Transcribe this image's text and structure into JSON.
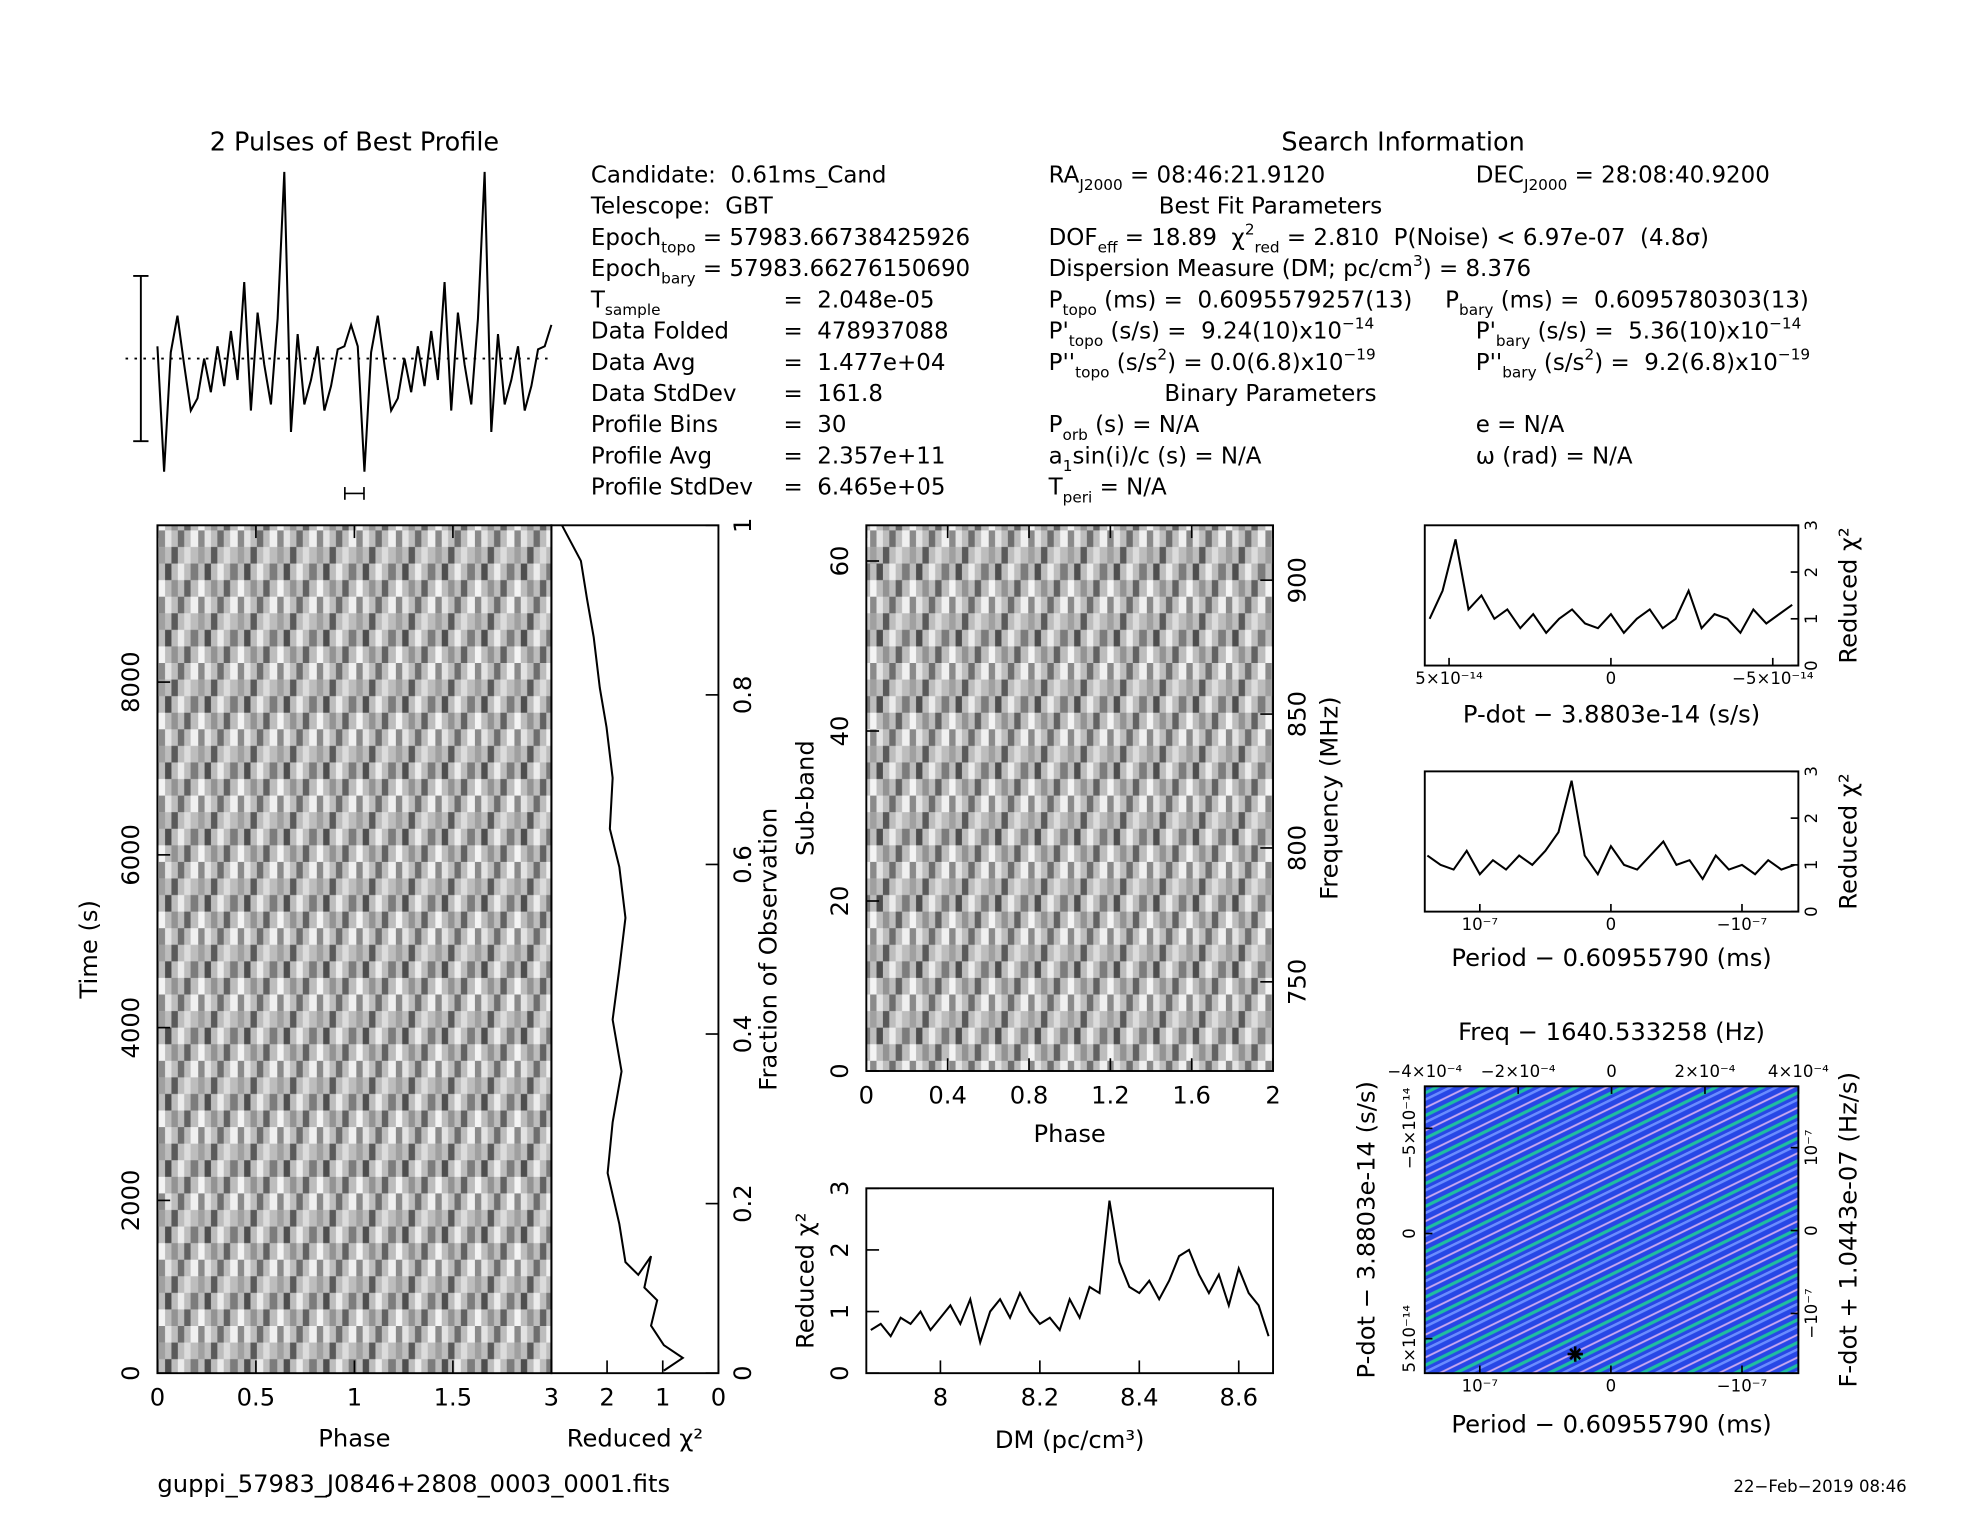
{
  "header": {
    "search_title": "Search Information",
    "left": [
      {
        "runs": [
          {
            "t": "Candidate:  0.61ms_Cand"
          }
        ]
      },
      {
        "runs": [
          {
            "t": "Telescope:  GBT"
          }
        ]
      },
      {
        "runs": [
          {
            "t": "Epoch"
          },
          {
            "sub": "topo"
          },
          {
            "t": " = 57983.66738425926"
          }
        ]
      },
      {
        "runs": [
          {
            "t": "Epoch"
          },
          {
            "sub": "bary"
          },
          {
            "t": " = 57983.66276150690"
          }
        ]
      },
      {
        "runs": [
          {
            "t": "T"
          },
          {
            "sub": "sample"
          }
        ],
        "value": "=  2.048e-05"
      },
      {
        "runs": [
          {
            "t": "Data Folded"
          }
        ],
        "value": "=  478937088"
      },
      {
        "runs": [
          {
            "t": "Data Avg"
          }
        ],
        "value": "=  1.477e+04"
      },
      {
        "runs": [
          {
            "t": "Data StdDev"
          }
        ],
        "value": "=  161.8"
      },
      {
        "runs": [
          {
            "t": "Profile Bins"
          }
        ],
        "value": "=  30"
      },
      {
        "runs": [
          {
            "t": "Profile Avg"
          }
        ],
        "value": "=  2.357e+11"
      },
      {
        "runs": [
          {
            "t": "Profile StdDev"
          }
        ],
        "value": "=  6.465e+05"
      }
    ],
    "mid": [
      {
        "runs": [
          {
            "t": "RA"
          },
          {
            "sub": "J2000"
          },
          {
            "t": " = 08:46:21.9120"
          }
        ]
      },
      {
        "heading": "Best Fit Parameters"
      },
      {
        "runs": [
          {
            "t": "DOF"
          },
          {
            "sub": "eff"
          },
          {
            "t": " = 18.89  χ"
          },
          {
            "sup": "2"
          },
          {
            "sub": "red"
          },
          {
            "t": " = 2.810  P(Noise) < 6.97e-07  (4.8σ)"
          }
        ]
      },
      {
        "runs": [
          {
            "t": "Dispersion Measure (DM; pc/cm"
          },
          {
            "sup": "3"
          },
          {
            "t": ") = 8.376"
          }
        ]
      },
      {
        "runs": [
          {
            "t": "P"
          },
          {
            "sub": "topo"
          },
          {
            "t": " (ms) =  0.6095579257(13)"
          }
        ]
      },
      {
        "runs": [
          {
            "t": "P'"
          },
          {
            "sub": "topo"
          },
          {
            "t": " (s/s) =  9.24(10)x10"
          },
          {
            "sup": "−14"
          }
        ]
      },
      {
        "runs": [
          {
            "t": "P''"
          },
          {
            "sub": "topo"
          },
          {
            "t": " (s/s"
          },
          {
            "sup": "2"
          },
          {
            "t": ") = 0.0(6.8)x10"
          },
          {
            "sup": "−19"
          }
        ]
      },
      {
        "heading": "Binary Parameters"
      },
      {
        "runs": [
          {
            "t": "P"
          },
          {
            "sub": "orb"
          },
          {
            "t": " (s) = N/A"
          }
        ]
      },
      {
        "runs": [
          {
            "t": "a"
          },
          {
            "sub": "1"
          },
          {
            "t": "sin(i)/c (s) = N/A"
          }
        ]
      },
      {
        "runs": [
          {
            "t": "T"
          },
          {
            "sub": "peri"
          },
          {
            "t": " = N/A"
          }
        ]
      }
    ],
    "right": [
      {
        "runs": [
          {
            "t": "DEC"
          },
          {
            "sub": "J2000"
          },
          {
            "t": " = 28:08:40.9200"
          }
        ]
      },
      {
        "runs": [
          {
            "t": "P"
          },
          {
            "sub": "bary"
          },
          {
            "t": " (ms) =  0.6095780303(13)"
          }
        ]
      },
      {
        "runs": [
          {
            "t": "P'"
          },
          {
            "sub": "bary"
          },
          {
            "t": " (s/s) =  5.36(10)x10"
          },
          {
            "sup": "−14"
          }
        ]
      },
      {
        "runs": [
          {
            "t": "P''"
          },
          {
            "sub": "bary"
          },
          {
            "t": " (s/s"
          },
          {
            "sup": "2"
          },
          {
            "t": ") =  9.2(6.8)x10"
          },
          {
            "sup": "−19"
          }
        ]
      },
      {
        "runs": [
          {
            "t": "e = N/A"
          }
        ]
      },
      {
        "runs": [
          {
            "t": "ω (rad) = N/A"
          }
        ]
      }
    ],
    "filename": "guppi_57983_J0846+2808_0003_0001.fits",
    "date": "22−Feb−2019 08:46"
  },
  "chart_data": [
    {
      "type": "profile",
      "title": "2 Pulses of Best Profile",
      "ylim": [
        0,
        100
      ],
      "average": 37,
      "error_bar": 27,
      "values": [
        41,
        0,
        39,
        51,
        35,
        20,
        24,
        37,
        26,
        41,
        28,
        46,
        30,
        62,
        20,
        52,
        35,
        22,
        50,
        98,
        13,
        45,
        22,
        30,
        41,
        20,
        28,
        40,
        41,
        48,
        41,
        0,
        39,
        51,
        35,
        20,
        24,
        37,
        26,
        41,
        28,
        46,
        30,
        62,
        20,
        52,
        35,
        22,
        50,
        98,
        13,
        45,
        22,
        30,
        41,
        20,
        28,
        40,
        41,
        48
      ]
    },
    {
      "type": "heatmap",
      "xlim": [
        0,
        2
      ],
      "xticks": [
        0,
        0.5,
        1,
        1.5
      ],
      "ylim": [
        0,
        9815
      ],
      "yticks": [
        0,
        2000,
        4000,
        6000,
        8000
      ],
      "xlabel": "Phase",
      "ylabel": "Time (s)"
    },
    {
      "type": "line",
      "xlim": [
        3,
        0
      ],
      "xticks": [
        3,
        2,
        1,
        0
      ],
      "ylim": [
        0,
        1
      ],
      "yticks": [
        0,
        0.2,
        0.4,
        0.6,
        0.8,
        1
      ],
      "xlabel": "Reduced χ²",
      "ylabel": "Fraction of Observation",
      "x": [
        2.81,
        2.47,
        2.36,
        2.24,
        2.13,
        2.01,
        1.9,
        1.95,
        1.78,
        1.67,
        1.78,
        1.9,
        1.74,
        1.9,
        1.99,
        1.78,
        1.67,
        1.44,
        1.21,
        1.33,
        1.1,
        1.21,
        0.98,
        0.64,
        0.98
      ],
      "values": [
        1.0,
        0.958,
        0.913,
        0.868,
        0.808,
        0.762,
        0.702,
        0.642,
        0.597,
        0.537,
        0.477,
        0.417,
        0.356,
        0.296,
        0.236,
        0.176,
        0.131,
        0.116,
        0.138,
        0.101,
        0.086,
        0.056,
        0.033,
        0.018,
        0.003
      ]
    },
    {
      "type": "heatmap",
      "xlim": [
        0,
        2
      ],
      "xticks": [
        0,
        0.4,
        0.8,
        1.2,
        1.6,
        2
      ],
      "ylim": [
        0,
        64.2
      ],
      "yticks": [
        0,
        20,
        40,
        60
      ],
      "y2lim": [
        716.7,
        920.5
      ],
      "y2ticks": [
        750,
        800,
        850,
        900
      ],
      "xlabel": "Phase",
      "ylabel": "Sub-band",
      "y2label": "Frequency (MHz)"
    },
    {
      "type": "line",
      "xlim": [
        7.851,
        8.669
      ],
      "xticks": [
        8,
        8.2,
        8.4,
        8.6
      ],
      "ylim": [
        0,
        3
      ],
      "yticks": [
        0,
        1,
        2,
        3
      ],
      "xlabel": "DM (pc/cm³)",
      "ylabel": "Reduced χ²",
      "x": [
        7.86,
        7.88,
        7.9,
        7.92,
        7.94,
        7.96,
        7.98,
        8.0,
        8.02,
        8.04,
        8.06,
        8.08,
        8.1,
        8.12,
        8.14,
        8.16,
        8.18,
        8.2,
        8.22,
        8.24,
        8.26,
        8.28,
        8.3,
        8.32,
        8.34,
        8.36,
        8.38,
        8.4,
        8.42,
        8.44,
        8.46,
        8.48,
        8.5,
        8.52,
        8.54,
        8.56,
        8.58,
        8.6,
        8.62,
        8.64,
        8.66
      ],
      "values": [
        0.7,
        0.8,
        0.6,
        0.9,
        0.8,
        1.0,
        0.7,
        0.9,
        1.1,
        0.8,
        1.2,
        0.5,
        1.0,
        1.2,
        0.9,
        1.3,
        1.0,
        0.8,
        0.9,
        0.7,
        1.2,
        0.9,
        1.4,
        1.3,
        2.8,
        1.8,
        1.4,
        1.3,
        1.5,
        1.2,
        1.5,
        1.9,
        2.0,
        1.6,
        1.3,
        1.6,
        1.1,
        1.7,
        1.3,
        1.1,
        0.6
      ]
    },
    {
      "type": "line",
      "xlim": [
        5.75e-14,
        -5.79e-14
      ],
      "xticks": [
        {
          "value": 5e-14,
          "label": "5×10⁻¹⁴"
        },
        0,
        {
          "value": -5e-14,
          "label": "−5×10⁻¹⁴"
        }
      ],
      "ylim": [
        0,
        3
      ],
      "yticks": [
        0,
        1,
        2,
        3
      ],
      "xlabel": "P-dot − 3.8803e-14 (s/s)",
      "ylabel": "Reduced χ²",
      "x": [
        5.6e-14,
        5.2e-14,
        4.8e-14,
        4.4e-14,
        4e-14,
        3.6e-14,
        3.2e-14,
        2.8e-14,
        2.4e-14,
        2e-14,
        1.6e-14,
        1.2e-14,
        8e-15,
        4e-15,
        0,
        -4e-15,
        -8e-15,
        -1.2e-14,
        -1.6e-14,
        -2e-14,
        -2.4e-14,
        -2.8e-14,
        -3.2e-14,
        -3.6e-14,
        -4e-14,
        -4.4e-14,
        -4.8e-14,
        -5.2e-14,
        -5.6e-14
      ],
      "values": [
        1.0,
        1.6,
        2.7,
        1.2,
        1.5,
        1.0,
        1.2,
        0.8,
        1.1,
        0.7,
        1.0,
        1.2,
        0.9,
        0.8,
        1.1,
        0.7,
        1.0,
        1.2,
        0.8,
        1.0,
        1.6,
        0.8,
        1.1,
        1.0,
        0.7,
        1.2,
        0.9,
        1.1,
        1.3
      ]
    },
    {
      "type": "line",
      "xlim": [
        1.42e-07,
        -1.43e-07
      ],
      "xticks": [
        {
          "value": 1e-07,
          "label": "10⁻⁷"
        },
        0,
        {
          "value": -1e-07,
          "label": "−10⁻⁷"
        }
      ],
      "ylim": [
        0,
        3
      ],
      "yticks": [
        0,
        1,
        2,
        3
      ],
      "xlabel": "Period − 0.60955790 (ms)",
      "ylabel": "Reduced χ²",
      "x": [
        1.4e-07,
        1.3e-07,
        1.2e-07,
        1.1e-07,
        1e-07,
        9e-08,
        8e-08,
        7e-08,
        6e-08,
        5e-08,
        4e-08,
        3e-08,
        2e-08,
        1e-08,
        0,
        -1e-08,
        -2e-08,
        -3e-08,
        -4e-08,
        -5e-08,
        -6e-08,
        -7e-08,
        -8e-08,
        -9e-08,
        -1e-07,
        -1.1e-07,
        -1.2e-07,
        -1.3e-07,
        -1.4e-07
      ],
      "values": [
        1.2,
        1.0,
        0.9,
        1.3,
        0.8,
        1.1,
        0.9,
        1.2,
        1.0,
        1.3,
        1.7,
        2.8,
        1.2,
        0.8,
        1.4,
        1.0,
        0.9,
        1.2,
        1.5,
        1.0,
        1.1,
        0.7,
        1.2,
        0.9,
        1.0,
        0.8,
        1.1,
        0.9,
        1.0
      ]
    },
    {
      "type": "contour",
      "title": "Freq − 1640.533258 (Hz)",
      "xlim": [
        1.42e-07,
        -1.43e-07
      ],
      "xticks": [
        {
          "value": 1e-07,
          "label": "10⁻⁷"
        },
        0,
        {
          "value": -1e-07,
          "label": "−10⁻⁷"
        }
      ],
      "x2lim": [
        -0.0004,
        0.0004
      ],
      "x2ticks": [
        {
          "value": -0.0004,
          "label": "−4×10⁻⁴"
        },
        {
          "value": -0.0002,
          "label": "−2×10⁻⁴"
        },
        0,
        {
          "value": 0.0002,
          "label": "2×10⁻⁴"
        },
        {
          "value": 0.0004,
          "label": "4×10⁻⁴"
        }
      ],
      "ylim": [
        6.64e-14,
        -7e-14
      ],
      "yticks": [
        {
          "value": 5e-14,
          "label": "5×10⁻¹⁴"
        },
        0,
        {
          "value": -5e-14,
          "label": "−5×10⁻¹⁴"
        }
      ],
      "y2lim": [
        -1.72e-07,
        1.74e-07
      ],
      "y2ticks": [
        {
          "value": -1e-07,
          "label": "−10⁻⁷"
        },
        0,
        {
          "value": 1e-07,
          "label": "10⁻⁷"
        }
      ],
      "xlabel": "Period − 0.60955790 (ms)",
      "ylabel": "P-dot − 3.8803e-14 (s/s)",
      "y2label": "F-dot + 1.0443e-07 (Hz/s)"
    }
  ]
}
